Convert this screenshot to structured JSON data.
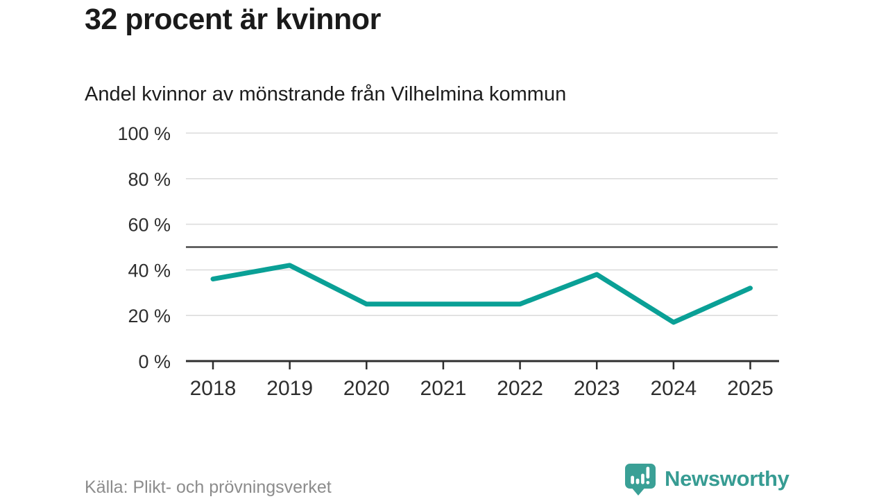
{
  "chart_data": {
    "type": "line",
    "title": "32 procent är kvinnor",
    "subtitle": "Andel kvinnor av mönstrande från Vilhelmina kommun",
    "x": [
      "2018",
      "2019",
      "2020",
      "2021",
      "2022",
      "2023",
      "2024",
      "2025"
    ],
    "series": [
      {
        "name": "Andel kvinnor av mönstrande",
        "values": [
          36,
          42,
          25,
          25,
          25,
          38,
          17,
          32
        ]
      }
    ],
    "unit": "%",
    "ylim": [
      0,
      100
    ],
    "yticks": [
      0,
      20,
      40,
      60,
      80,
      100
    ],
    "ytick_labels": [
      "0 %",
      "20 %",
      "40 %",
      "60 %",
      "80 %",
      "100 %"
    ],
    "reference_line": 50,
    "grid": true,
    "legend": "none",
    "line_color": "#0AA096"
  },
  "footer": {
    "source": "Källa: Plikt- och prövningsverket",
    "brand": "Newsworthy"
  },
  "colors": {
    "line": "#0AA096",
    "gridline": "#dcdcdc",
    "reference_line": "#4a4a4a",
    "axis": "#2e2e2e",
    "axis_text": "#2e2e2e",
    "title_text": "#1a1a1a",
    "muted_text": "#8c8c8c",
    "brand_teal": "#3aa096"
  }
}
